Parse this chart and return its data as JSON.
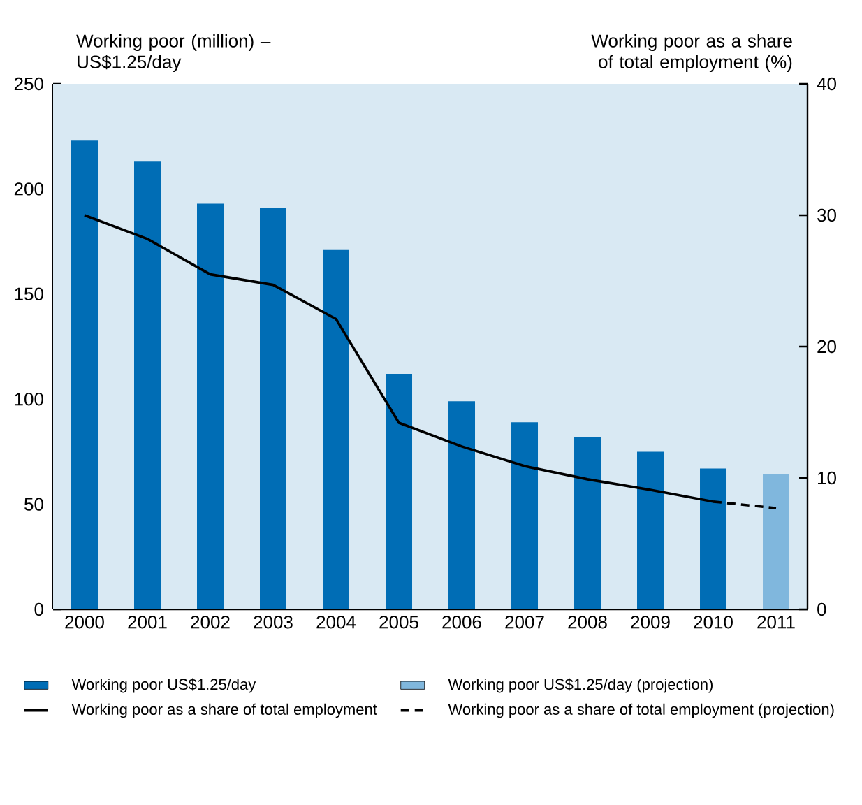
{
  "chart_data": {
    "type": "bar",
    "ylabel": "Working poor (million) – US$1.25/day",
    "y2label": "Working poor as a share of total employment (%)",
    "categories": [
      "2000",
      "2001",
      "2002",
      "2003",
      "2004",
      "2005",
      "2006",
      "2007",
      "2008",
      "2009",
      "2010",
      "2011"
    ],
    "series": [
      {
        "name": "Working poor US$1.25/day",
        "color": "#006db5",
        "values": [
          223,
          213,
          193,
          191,
          171,
          112,
          99,
          89,
          82,
          75,
          67,
          null
        ]
      },
      {
        "name": "Working poor US$1.25/day (projection)",
        "color": "#80b7dd",
        "values": [
          null,
          null,
          null,
          null,
          null,
          null,
          null,
          null,
          null,
          null,
          null,
          64.5
        ]
      },
      {
        "name": "Working poor as a share of total employment",
        "type": "line",
        "axis": "y2",
        "color": "#000000",
        "line_style": "solid",
        "values": [
          30.0,
          28.2,
          25.5,
          24.7,
          22.1,
          14.2,
          12.4,
          10.9,
          9.9,
          9.1,
          8.2,
          null
        ]
      },
      {
        "name": "Working poor as a share of total employment (projection)",
        "type": "line",
        "axis": "y2",
        "color": "#000000",
        "line_style": "dashed",
        "values": [
          null,
          null,
          null,
          null,
          null,
          null,
          null,
          null,
          null,
          null,
          8.2,
          7.7
        ]
      }
    ],
    "ylim": [
      0,
      250
    ],
    "yticks": [
      0,
      50,
      100,
      150,
      200,
      250
    ],
    "y2lim": [
      0,
      40
    ],
    "y2ticks": [
      0,
      10,
      20,
      30,
      40
    ],
    "legend": "bottom",
    "grid": false,
    "marker": "none"
  }
}
